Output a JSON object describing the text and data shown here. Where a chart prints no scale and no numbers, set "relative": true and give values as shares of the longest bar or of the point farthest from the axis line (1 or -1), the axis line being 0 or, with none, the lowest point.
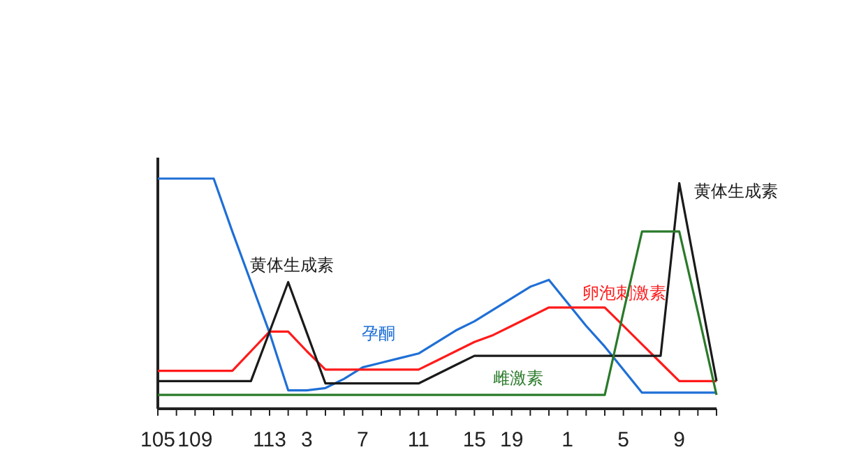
{
  "chart_data": {
    "type": "line",
    "relative": true,
    "categories": [
      "105",
      null,
      "109",
      null,
      null,
      null,
      "113",
      null,
      "3",
      null,
      null,
      "7",
      null,
      null,
      "11",
      null,
      null,
      "15",
      null,
      "19",
      null,
      null,
      "1",
      null,
      null,
      "5",
      null,
      null,
      "9",
      null,
      null
    ],
    "tick_labels": "x",
    "legend": false,
    "marker": "none",
    "line_style": "solid",
    "series": [
      {
        "name": "孕酮",
        "color": "#1f6fd6",
        "values": [
          1,
          1,
          1,
          1,
          0.77,
          0.55,
          0.33,
          0.08,
          0.08,
          0.09,
          0.13,
          0.18,
          0.2,
          0.22,
          0.24,
          0.29,
          0.34,
          0.38,
          0.43,
          0.48,
          0.53,
          0.56,
          0.46,
          0.36,
          0.27,
          0.17,
          0.07,
          0.07,
          0.07,
          0.07,
          0.07
        ]
      },
      {
        "name": "卵泡刺激素",
        "color": "#ff1a1a",
        "values": [
          0.165,
          0.165,
          0.165,
          0.165,
          0.165,
          0.25,
          0.335,
          0.335,
          0.25,
          0.17,
          0.17,
          0.17,
          0.17,
          0.17,
          0.17,
          0.21,
          0.25,
          0.29,
          0.32,
          0.36,
          0.4,
          0.44,
          0.44,
          0.44,
          0.44,
          0.36,
          0.28,
          0.2,
          0.12,
          0.12,
          0.12
        ]
      },
      {
        "name": "黄体生成素",
        "color": "#1a1a1a",
        "values": [
          0.12,
          0.12,
          0.12,
          0.12,
          0.12,
          0.12,
          0.335,
          0.55,
          0.33,
          0.11,
          0.11,
          0.11,
          0.11,
          0.11,
          0.11,
          0.15,
          0.19,
          0.23,
          0.23,
          0.23,
          0.23,
          0.23,
          0.23,
          0.23,
          0.23,
          0.23,
          0.23,
          0.23,
          0.98,
          0.55,
          0.12
        ]
      },
      {
        "name": "雌激素",
        "color": "#2a7a2a",
        "values": [
          0.06,
          0.06,
          0.06,
          0.06,
          0.06,
          0.06,
          0.06,
          0.06,
          0.06,
          0.06,
          0.06,
          0.06,
          0.06,
          0.06,
          0.06,
          0.06,
          0.06,
          0.06,
          0.06,
          0.06,
          0.06,
          0.06,
          0.06,
          0.06,
          0.06,
          0.42,
          0.77,
          0.77,
          0.77,
          0.42,
          0.06
        ]
      }
    ]
  }
}
